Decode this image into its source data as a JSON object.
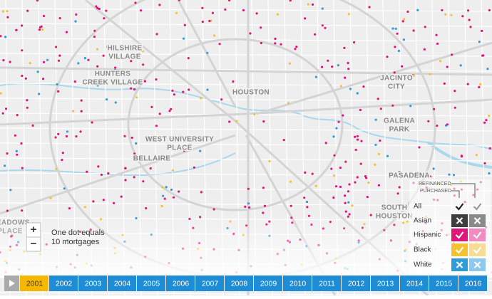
{
  "map": {
    "place_labels": [
      {
        "lines": [
          "HILSHIRE",
          "VILLAGE"
        ]
      },
      {
        "lines": [
          "HUNTERS",
          "CREEK VILLAGE"
        ]
      },
      {
        "lines": [
          "HOUSTON"
        ]
      },
      {
        "lines": [
          "JACINTO",
          "CITY"
        ]
      },
      {
        "lines": [
          "GALENA",
          "PARK"
        ]
      },
      {
        "lines": [
          "WEST UNIVERSITY",
          "PLACE"
        ]
      },
      {
        "lines": [
          "BELLAIRE"
        ]
      },
      {
        "lines": [
          "PASADENA"
        ]
      },
      {
        "lines": [
          "SOUTH",
          "HOUSTON"
        ]
      },
      {
        "lines": [
          "MEADOWS",
          "PLACE"
        ]
      }
    ],
    "zoom": {
      "in": "+",
      "out": "−"
    },
    "scale_note": [
      "One dot equals",
      "10 mortgages"
    ],
    "legend": {
      "refinanced": "REFINANCED",
      "purchased": "PURCHASED",
      "rows": [
        {
          "name": "All",
          "color": "#222222",
          "light": "#999999"
        },
        {
          "name": "Asian",
          "color": "#3d3d3d",
          "light": "#8a8a8a"
        },
        {
          "name": "Hispanic",
          "color": "#e0157a",
          "light": "#f08cc0"
        },
        {
          "name": "Black",
          "color": "#f2c230",
          "light": "#f6dc95"
        },
        {
          "name": "White",
          "color": "#2f9bd7",
          "light": "#8cc9ec"
        }
      ]
    },
    "timeline": {
      "years": [
        "2001",
        "2002",
        "2003",
        "2004",
        "2005",
        "2006",
        "2007",
        "2008",
        "2009",
        "2010",
        "2011",
        "2012",
        "2013",
        "2014",
        "2015",
        "2016"
      ],
      "selected": "2001"
    }
  }
}
